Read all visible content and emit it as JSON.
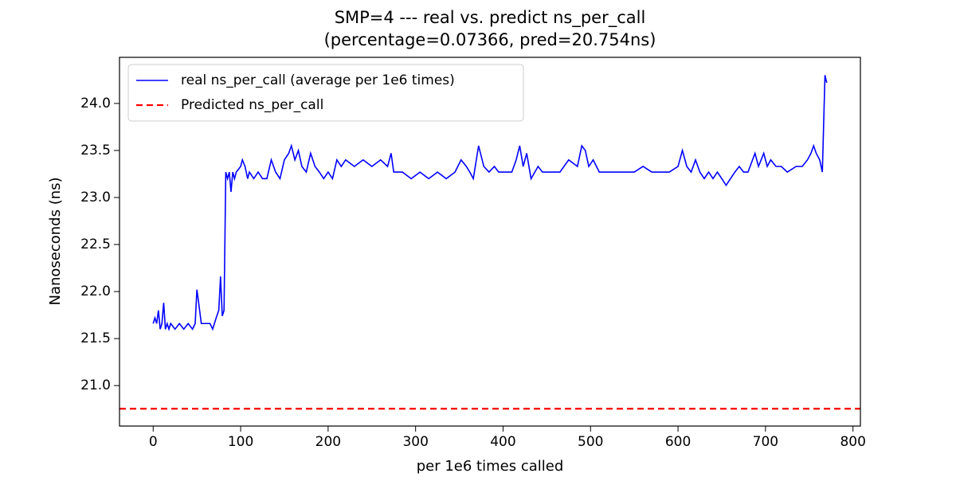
{
  "chart_data": {
    "type": "line",
    "title": "SMP=4 --- real vs. predict ns_per_call",
    "subtitle": "(percentage=0.07366, pred=20.754ns)",
    "x_label": "per 1e6 times called",
    "y_label": "Nanoseconds (ns)",
    "x": [
      0,
      2,
      4,
      6,
      8,
      10,
      12,
      14,
      16,
      18,
      20,
      25,
      30,
      35,
      40,
      45,
      48,
      50,
      52,
      55,
      60,
      65,
      68,
      70,
      72,
      75,
      77,
      79,
      81,
      83,
      85,
      87,
      89,
      91,
      93,
      95,
      100,
      102,
      105,
      108,
      110,
      115,
      120,
      125,
      130,
      135,
      140,
      145,
      150,
      155,
      158,
      162,
      166,
      170,
      175,
      180,
      185,
      190,
      195,
      200,
      205,
      210,
      215,
      220,
      230,
      240,
      250,
      260,
      268,
      272,
      275,
      285,
      295,
      305,
      315,
      325,
      335,
      345,
      352,
      358,
      362,
      366,
      372,
      378,
      384,
      390,
      395,
      400,
      410,
      415,
      419,
      423,
      427,
      432,
      440,
      445,
      455,
      465,
      475,
      485,
      490,
      494,
      498,
      503,
      510,
      520,
      530,
      540,
      550,
      560,
      570,
      580,
      590,
      600,
      605,
      610,
      615,
      620,
      625,
      630,
      635,
      640,
      645,
      650,
      655,
      660,
      665,
      670,
      675,
      680,
      688,
      692,
      698,
      702,
      706,
      712,
      718,
      725,
      735,
      742,
      748,
      752,
      755,
      758,
      762,
      765,
      768,
      770
    ],
    "series": [
      {
        "name": "real ns_per_call (average per 1e6 times)",
        "color": "#0000ff",
        "style": "solid",
        "values": [
          21.66,
          21.72,
          21.66,
          21.8,
          21.6,
          21.66,
          21.88,
          21.6,
          21.66,
          21.6,
          21.66,
          21.6,
          21.66,
          21.6,
          21.66,
          21.6,
          21.66,
          22.02,
          21.88,
          21.66,
          21.66,
          21.66,
          21.6,
          21.66,
          21.72,
          21.8,
          22.16,
          21.74,
          21.8,
          23.27,
          23.2,
          23.27,
          23.06,
          23.27,
          23.2,
          23.27,
          23.33,
          23.4,
          23.33,
          23.2,
          23.27,
          23.2,
          23.27,
          23.2,
          23.2,
          23.4,
          23.27,
          23.2,
          23.4,
          23.47,
          23.55,
          23.4,
          23.5,
          23.33,
          23.27,
          23.47,
          23.33,
          23.27,
          23.2,
          23.27,
          23.2,
          23.4,
          23.33,
          23.4,
          23.33,
          23.4,
          23.33,
          23.4,
          23.33,
          23.47,
          23.27,
          23.27,
          23.2,
          23.27,
          23.2,
          23.27,
          23.2,
          23.27,
          23.4,
          23.33,
          23.27,
          23.2,
          23.55,
          23.33,
          23.27,
          23.33,
          23.27,
          23.27,
          23.27,
          23.4,
          23.55,
          23.33,
          23.47,
          23.2,
          23.33,
          23.27,
          23.27,
          23.27,
          23.4,
          23.33,
          23.55,
          23.5,
          23.33,
          23.4,
          23.27,
          23.27,
          23.27,
          23.27,
          23.27,
          23.33,
          23.27,
          23.27,
          23.27,
          23.33,
          23.5,
          23.33,
          23.27,
          23.4,
          23.27,
          23.2,
          23.27,
          23.2,
          23.27,
          23.2,
          23.13,
          23.2,
          23.27,
          23.33,
          23.27,
          23.27,
          23.47,
          23.33,
          23.47,
          23.33,
          23.4,
          23.33,
          23.33,
          23.27,
          23.33,
          23.33,
          23.4,
          23.47,
          23.55,
          23.47,
          23.4,
          23.27,
          24.3,
          24.22
        ]
      },
      {
        "name": "Predicted ns_per_call",
        "color": "#ff0000",
        "style": "dashed",
        "y": 20.754
      }
    ],
    "xlim": [
      -38.5,
      808.5
    ],
    "ylim": [
      20.57,
      24.49
    ],
    "xticks": [
      0,
      100,
      200,
      300,
      400,
      500,
      600,
      700,
      800
    ],
    "yticks": [
      {
        "value": 21,
        "label": "21.0"
      },
      21.5,
      {
        "value": 22,
        "label": "22.0"
      },
      22.5,
      {
        "value": 23,
        "label": "23.0"
      },
      23.5,
      {
        "value": 24,
        "label": "24.0"
      }
    ],
    "grid": false,
    "legend": "upper left"
  }
}
